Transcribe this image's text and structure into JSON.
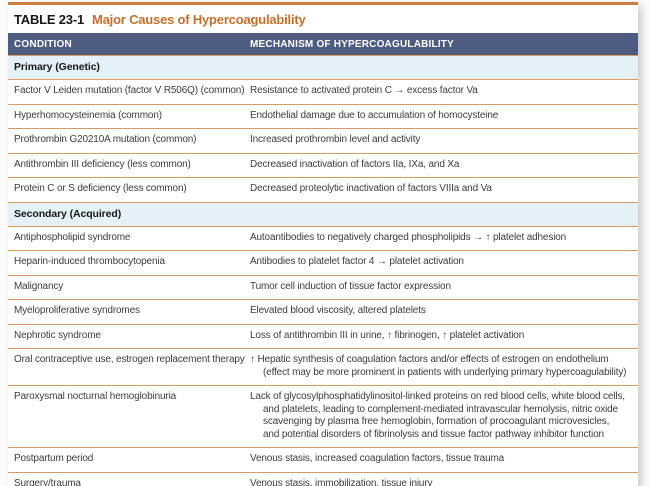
{
  "table": {
    "label": "TABLE 23-1",
    "title": "Major Causes of Hypercoagulability",
    "columns": [
      "CONDITION",
      "MECHANISM OF HYPERCOAGULABILITY"
    ],
    "sections": [
      {
        "title": "Primary (Genetic)",
        "rows": [
          {
            "condition": "Factor V Leiden mutation (factor V R506Q) (common)",
            "mechanism": "Resistance to activated protein C → excess factor Va"
          },
          {
            "condition": "Hyperhomocysteinemia (common)",
            "mechanism": "Endothelial damage due to accumulation of homocysteine"
          },
          {
            "condition": "Prothrombin G20210A mutation (common)",
            "mechanism": "Increased prothrombin level and activity"
          },
          {
            "condition": "Antithrombin III deficiency (less common)",
            "mechanism": "Decreased inactivation of factors IIa, IXa, and Xa"
          },
          {
            "condition": "Protein C or S deficiency (less common)",
            "mechanism": "Decreased proteolytic inactivation of factors VIIIa and Va"
          }
        ]
      },
      {
        "title": "Secondary (Acquired)",
        "rows": [
          {
            "condition": "Antiphospholipid syndrome",
            "mechanism": "Autoantibodies to negatively charged phospholipids → ↑ platelet adhesion"
          },
          {
            "condition": "Heparin-induced thrombocytopenia",
            "mechanism": "Antibodies to platelet factor 4 → platelet activation"
          },
          {
            "condition": "Malignancy",
            "mechanism": "Tumor cell induction of tissue factor expression"
          },
          {
            "condition": "Myeloproliferative syndromes",
            "mechanism": "Elevated blood viscosity, altered platelets"
          },
          {
            "condition": "Nephrotic syndrome",
            "mechanism": "Loss of antithrombin III in urine, ↑ fibrinogen, ↑ platelet activation"
          },
          {
            "condition": "Oral contraceptive use, estrogen replacement therapy",
            "mechanism": "↑ Hepatic synthesis of coagulation factors and/or effects of estrogen on endothelium (effect may be more prominent in patients with underlying primary hypercoagulability)"
          },
          {
            "condition": "Paroxysmal nocturnal hemoglobinuria",
            "mechanism": "Lack of glycosylphosphatidylinositol-linked proteins on red blood cells, white blood cells, and platelets, leading to complement-mediated intravascular hemolysis, nitric oxide scavenging by plasma free hemoglobin, formation of procoagulant microvesicles, and potential disorders of fibrinolysis and tissue factor pathway inhibitor function"
          },
          {
            "condition": "Postpartum period",
            "mechanism": "Venous stasis, increased coagulation factors, tissue trauma"
          },
          {
            "condition": "Surgery/trauma",
            "mechanism": "Venous stasis, immobilization, tissue injury"
          }
        ]
      }
    ]
  },
  "colors": {
    "accent_orange": "#c2702e",
    "rule_orange": "#d69a62",
    "border_orange": "#cc7f44",
    "header_navy": "#4d5c7f",
    "section_blue": "#e4f1f9",
    "body_text": "#3d3d3d"
  }
}
